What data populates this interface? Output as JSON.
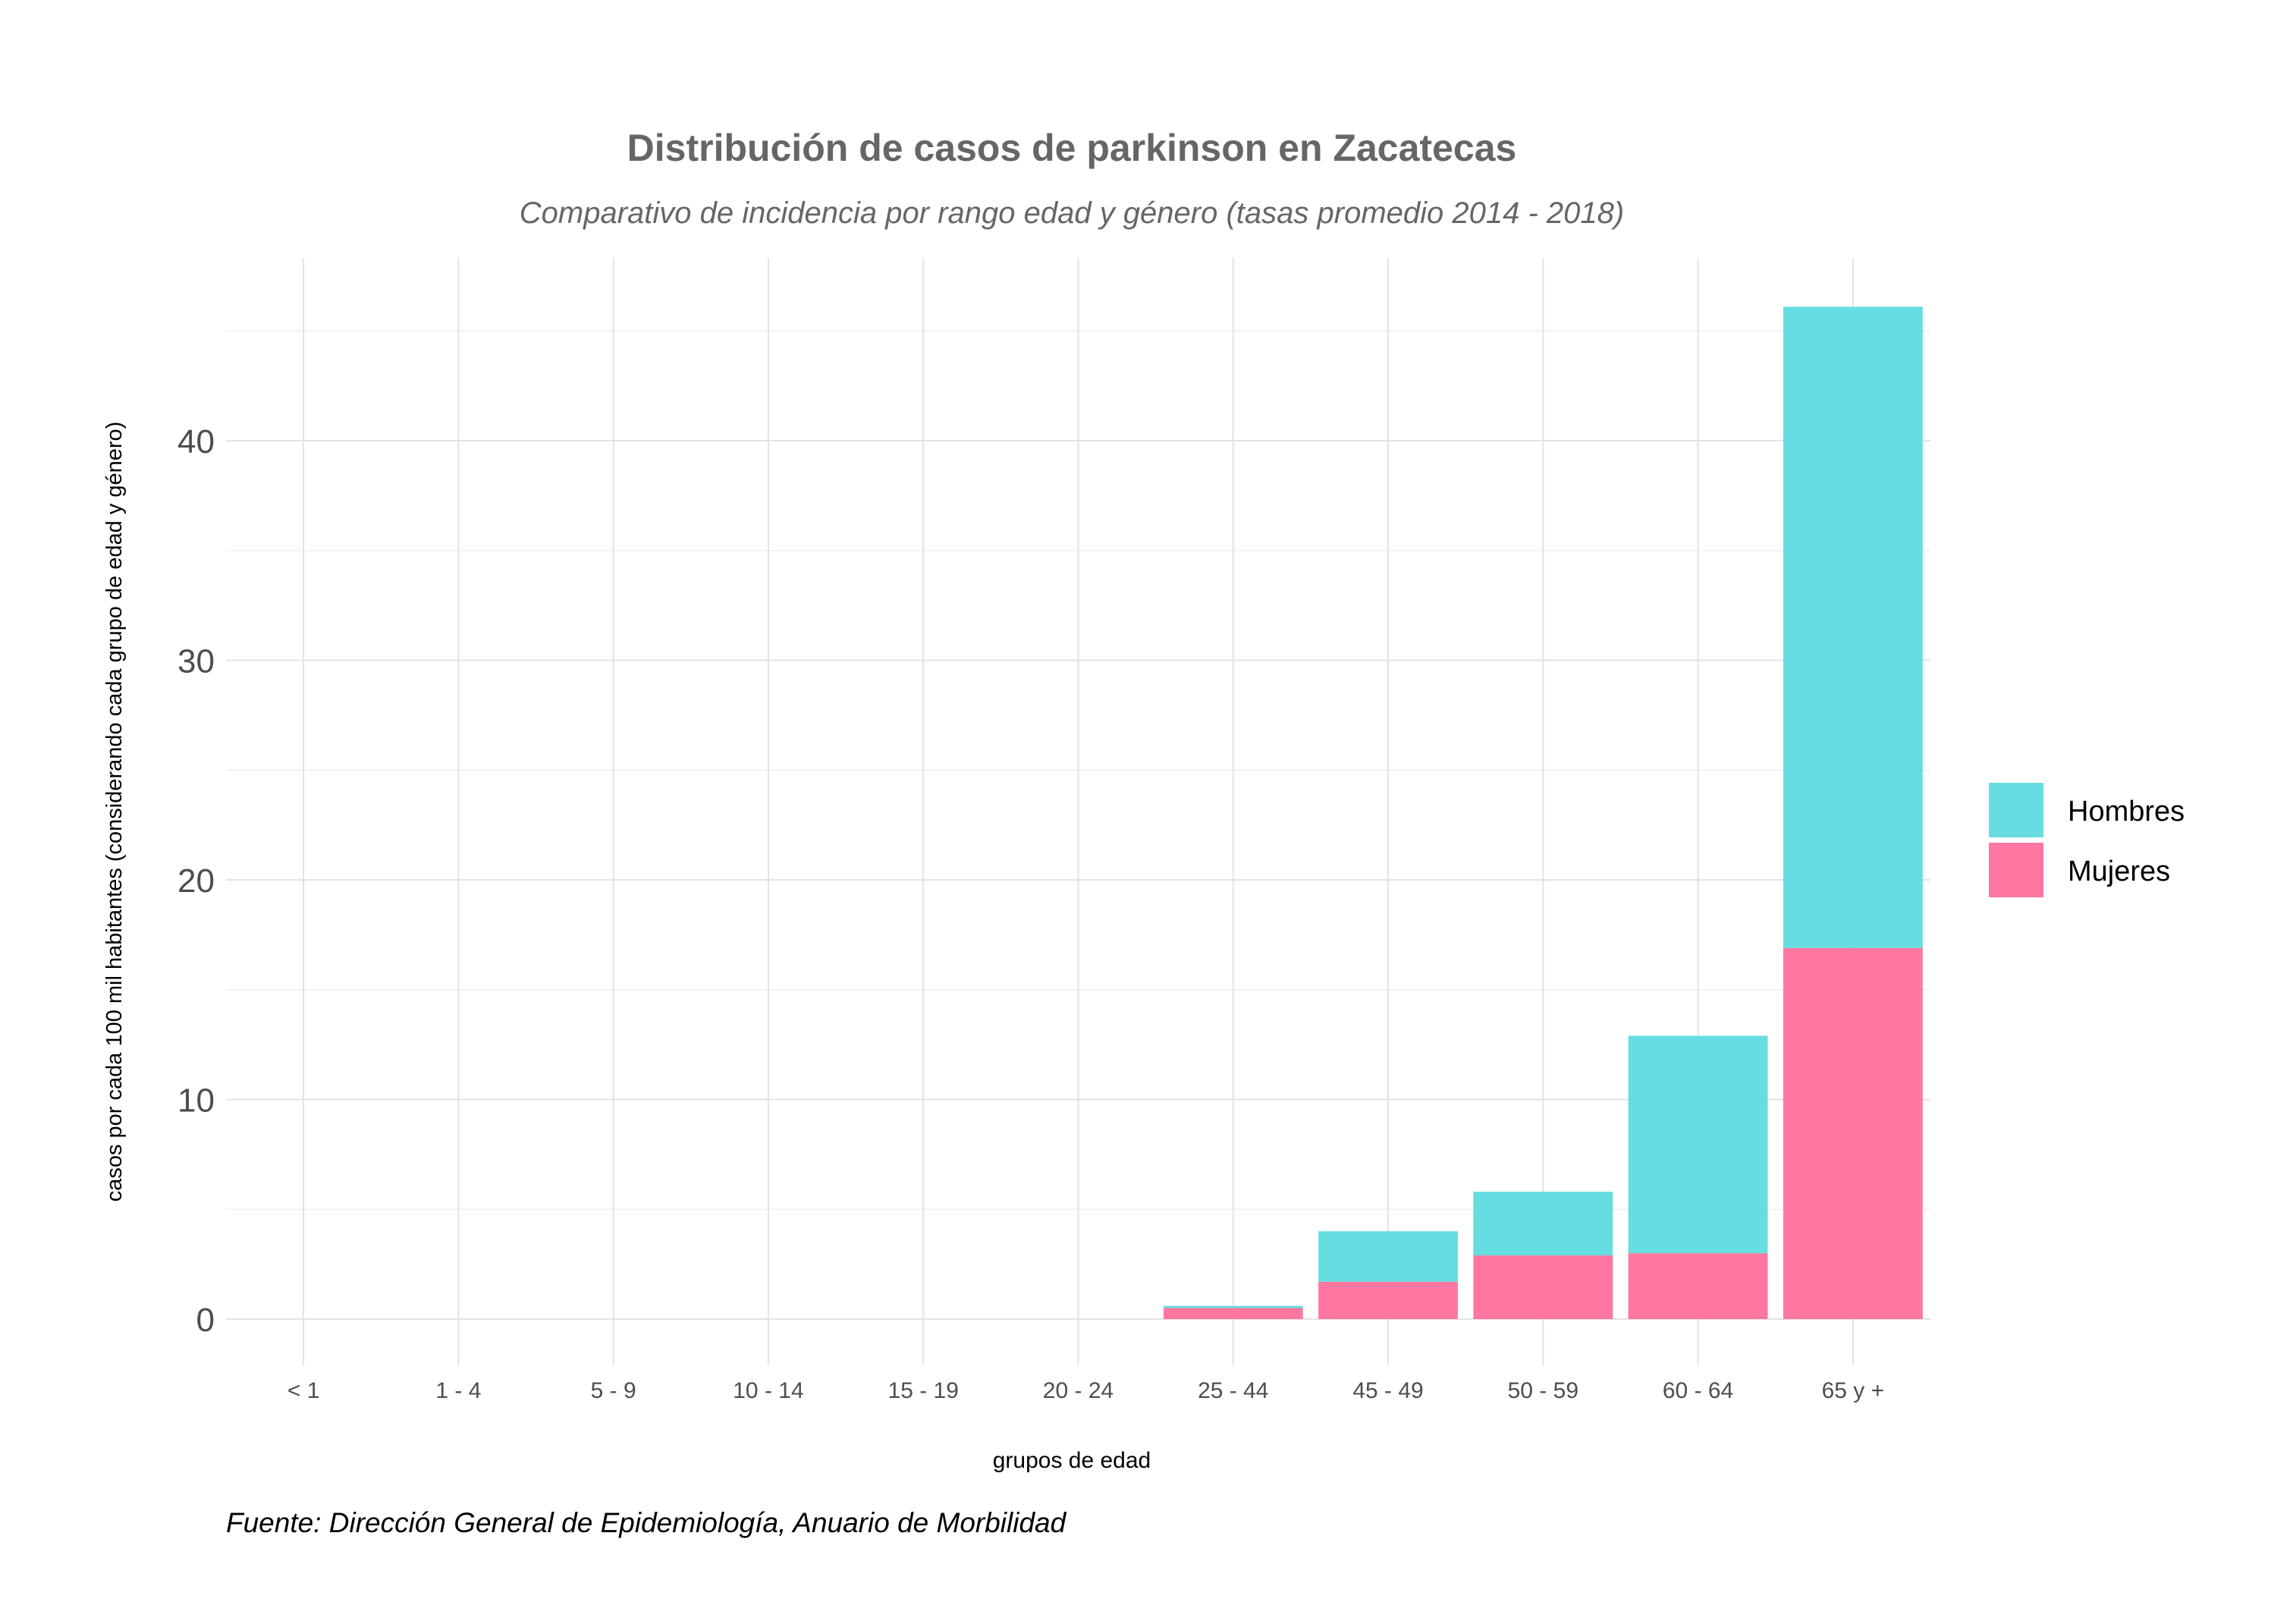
{
  "chart_data": {
    "type": "bar",
    "stacked": true,
    "title": "Distribución de casos de parkinson en Zacatecas",
    "subtitle": "Comparativo de incidencia por rango edad y género (tasas promedio 2014 - 2018)",
    "caption": "Fuente: Dirección General de Epidemiología, Anuario de Morbilidad",
    "xlabel": "grupos de edad",
    "ylabel": "casos por cada 100 mil habitantes (considerando cada grupo de edad y género)",
    "categories": [
      "< 1",
      "1 - 4",
      "5 - 9",
      "10 - 14",
      "15 - 19",
      "20 - 24",
      "25 - 44",
      "45 - 49",
      "50 - 59",
      "60 - 64",
      "65 y +"
    ],
    "series": [
      {
        "name": "Mujeres",
        "color": "#FF77A1",
        "values": [
          0,
          0,
          0,
          0,
          0,
          0,
          0.5,
          1.7,
          2.9,
          3.0,
          16.9
        ]
      },
      {
        "name": "Hombres",
        "color": "#66DDE1",
        "values": [
          0,
          0,
          0,
          0,
          0,
          0,
          0.1,
          2.3,
          2.9,
          9.9,
          29.2
        ]
      }
    ],
    "stack_order_bottom_to_top": [
      "Mujeres",
      "Hombres"
    ],
    "legend_order": [
      "Hombres",
      "Mujeres"
    ],
    "ylim": [
      -3,
      48
    ],
    "yticks": [
      0,
      10,
      20,
      30,
      40
    ],
    "yticks_text": [
      "0",
      "10",
      "20",
      "30",
      "40"
    ],
    "grid": true,
    "legend_position": "right",
    "colors": {
      "grid_major": "#e3e3e3",
      "grid_minor": "#eeeeee"
    }
  }
}
